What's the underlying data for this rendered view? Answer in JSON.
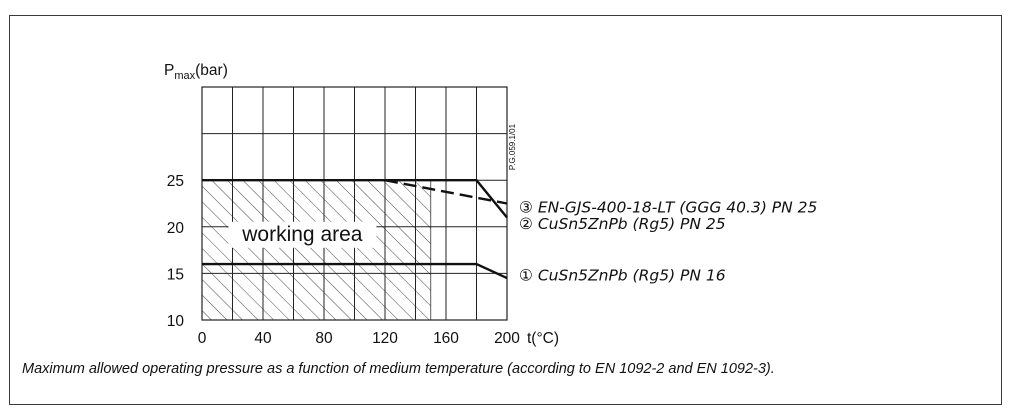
{
  "chart_data": {
    "type": "line",
    "ylabel": {
      "main": "P",
      "sub": "max",
      "unit": "(bar)"
    },
    "xlabel": "t(°C)",
    "xlim": [
      0,
      200
    ],
    "ylim": [
      10,
      35
    ],
    "x_ticks": [
      "0",
      "40",
      "80",
      "120",
      "160",
      "200"
    ],
    "y_ticks": [
      "10",
      "15",
      "20",
      "25"
    ],
    "grid": true,
    "working_area": {
      "label": "working area",
      "x": [
        0,
        150
      ],
      "y": [
        10,
        25
      ]
    },
    "series": [
      {
        "name": "EN-GJS-400-18-LT (GGG 40.3) PN 25",
        "marker": "③",
        "style": "dashed",
        "points": [
          [
            120,
            25
          ],
          [
            200,
            22.5
          ]
        ]
      },
      {
        "name": "CuSn5ZnPb (Rg5) PN 25",
        "marker": "②",
        "style": "solid",
        "points": [
          [
            0,
            25
          ],
          [
            180,
            25
          ],
          [
            200,
            21
          ]
        ]
      },
      {
        "name": "CuSn5ZnPb (Rg5) PN 16",
        "marker": "①",
        "style": "solid",
        "points": [
          [
            0,
            16
          ],
          [
            180,
            16
          ],
          [
            200,
            14.5
          ]
        ]
      }
    ],
    "code": "P.G.059.1/01"
  },
  "caption": "Maximum allowed operating pressure as a function of medium temperature (according to EN 1092-2 and EN 1092-3)."
}
